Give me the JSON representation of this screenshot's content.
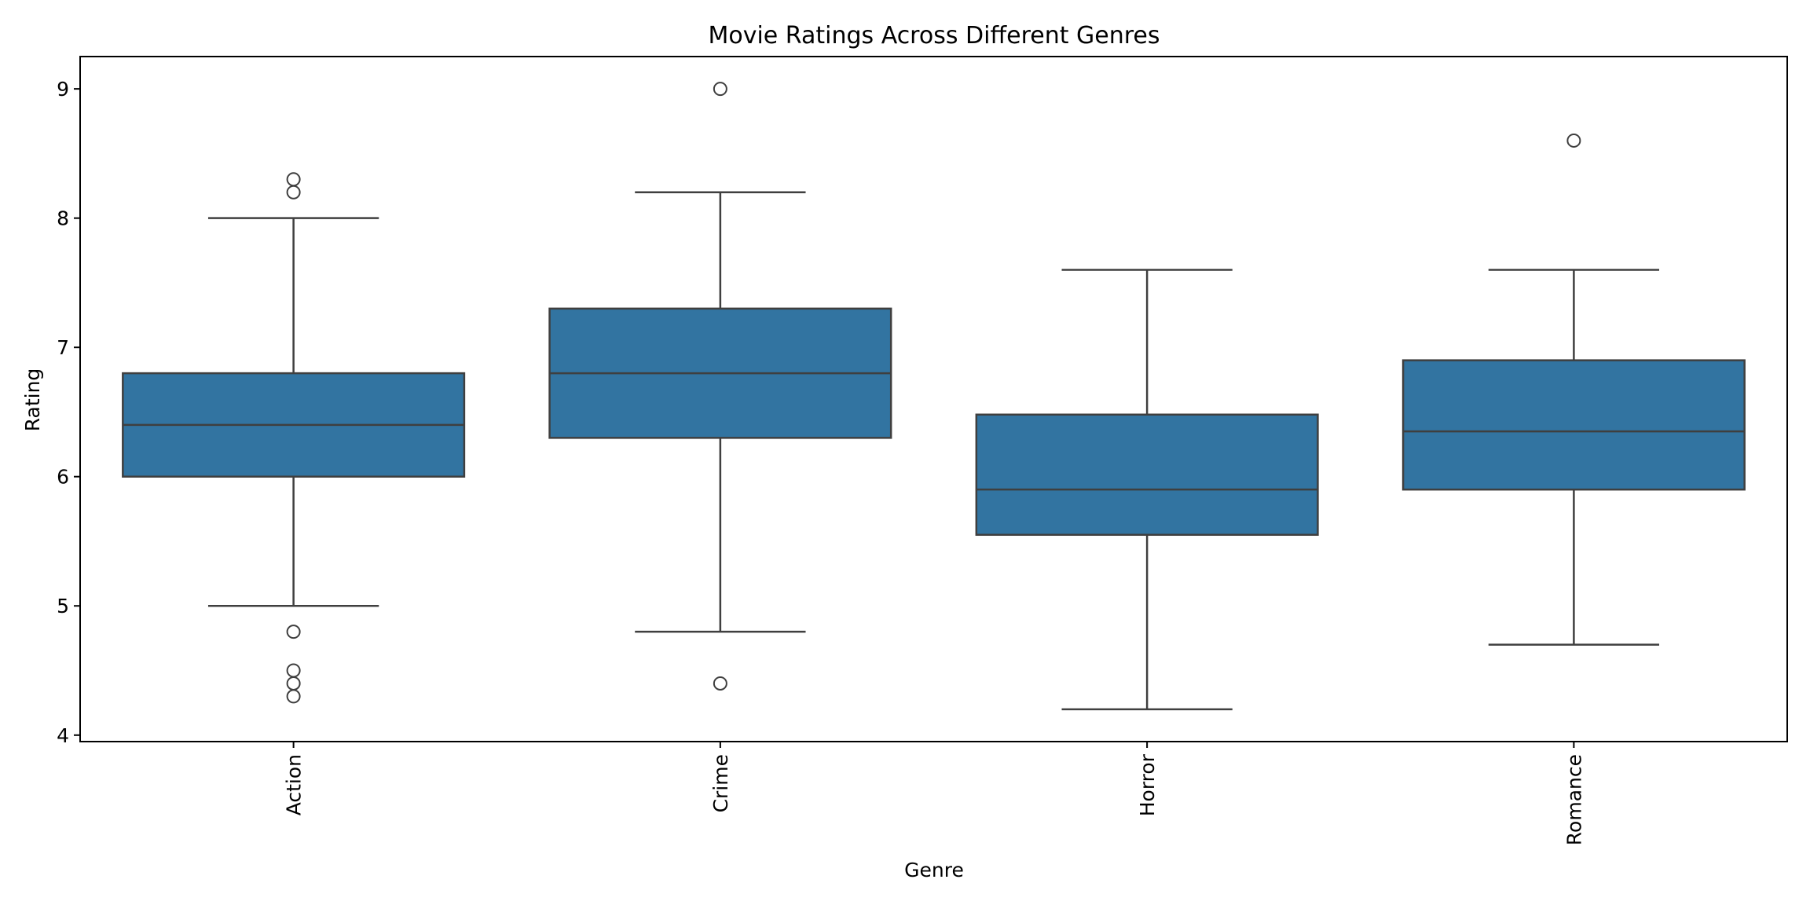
{
  "chart_data": {
    "type": "box",
    "title": "Movie Ratings Across Different Genres",
    "xlabel": "Genre",
    "ylabel": "Rating",
    "ylim": [
      3.95,
      9.25
    ],
    "yticks": [
      4,
      5,
      6,
      7,
      8,
      9
    ],
    "categories": [
      "Action",
      "Crime",
      "Horror",
      "Romance"
    ],
    "boxes": [
      {
        "category": "Action",
        "whisker_low": 5.0,
        "q1": 6.0,
        "median": 6.4,
        "q3": 6.8,
        "whisker_high": 8.0,
        "outliers": [
          8.3,
          8.2,
          4.8,
          4.5,
          4.4,
          4.3
        ]
      },
      {
        "category": "Crime",
        "whisker_low": 4.8,
        "q1": 6.3,
        "median": 6.8,
        "q3": 7.3,
        "whisker_high": 8.2,
        "outliers": [
          9.0,
          4.4
        ]
      },
      {
        "category": "Horror",
        "whisker_low": 4.2,
        "q1": 5.55,
        "median": 5.9,
        "q3": 6.48,
        "whisker_high": 7.6,
        "outliers": []
      },
      {
        "category": "Romance",
        "whisker_low": 4.7,
        "q1": 5.9,
        "median": 6.35,
        "q3": 6.9,
        "whisker_high": 7.6,
        "outliers": [
          8.6
        ]
      }
    ],
    "box_color": "#3274a1",
    "line_color": "#3f3f3f",
    "grid": false,
    "legend": false
  }
}
